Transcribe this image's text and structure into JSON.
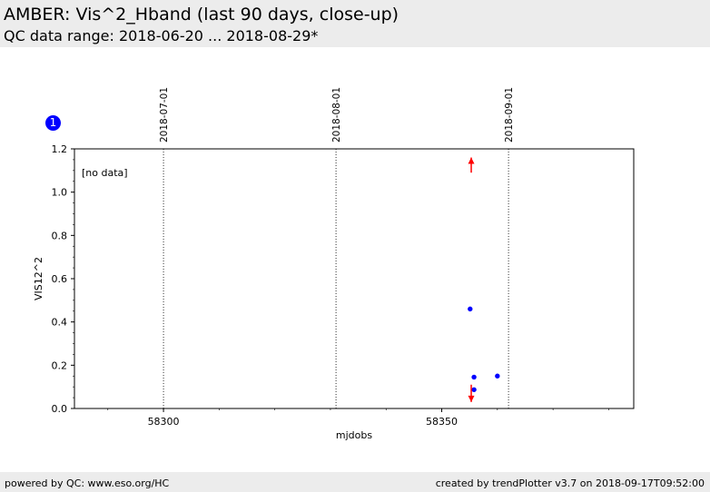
{
  "header": {
    "title": "AMBER: Vis^2_Hband (last 90 days, close-up)",
    "subtitle": "QC data range: 2018-06-20 ... 2018-08-29*"
  },
  "badge": "1",
  "footer": {
    "left": "powered by QC: www.eso.org/HC",
    "right": "created by trendPlotter v3.7 on 2018-09-17T09:52:00"
  },
  "colors": {
    "points": "#0000ff",
    "limits": "#ff0000"
  },
  "chart_data": {
    "type": "scatter",
    "xlabel": "mjdobs",
    "ylabel": "VIS12^2",
    "xlim": [
      58284,
      58384.5
    ],
    "ylim": [
      0,
      1.2
    ],
    "xticks": [
      58300,
      58350
    ],
    "xtick_labels": [
      "58300",
      "58350"
    ],
    "yticks": [
      0.0,
      0.2,
      0.4,
      0.6,
      0.8,
      1.0,
      1.2
    ],
    "ytick_labels": [
      "0.0",
      "0.2",
      "0.4",
      "0.6",
      "0.8",
      "1.0",
      "1.2"
    ],
    "annotation": "[no data]",
    "date_markers": [
      {
        "x": 58300,
        "label": "2018-07-01"
      },
      {
        "x": 58331,
        "label": "2018-08-01"
      },
      {
        "x": 58362,
        "label": "2018-09-01"
      }
    ],
    "points": [
      {
        "x": 58355.1,
        "y": 0.46
      },
      {
        "x": 58355.8,
        "y": 0.145
      },
      {
        "x": 58355.8,
        "y": 0.087
      },
      {
        "x": 58360.0,
        "y": 0.15
      }
    ],
    "limit_markers": [
      {
        "x": 58355.3,
        "y_from": 1.09,
        "y_to": 1.16,
        "direction": "up"
      },
      {
        "x": 58355.3,
        "y_from": 0.11,
        "y_to": 0.03,
        "direction": "down"
      }
    ]
  }
}
